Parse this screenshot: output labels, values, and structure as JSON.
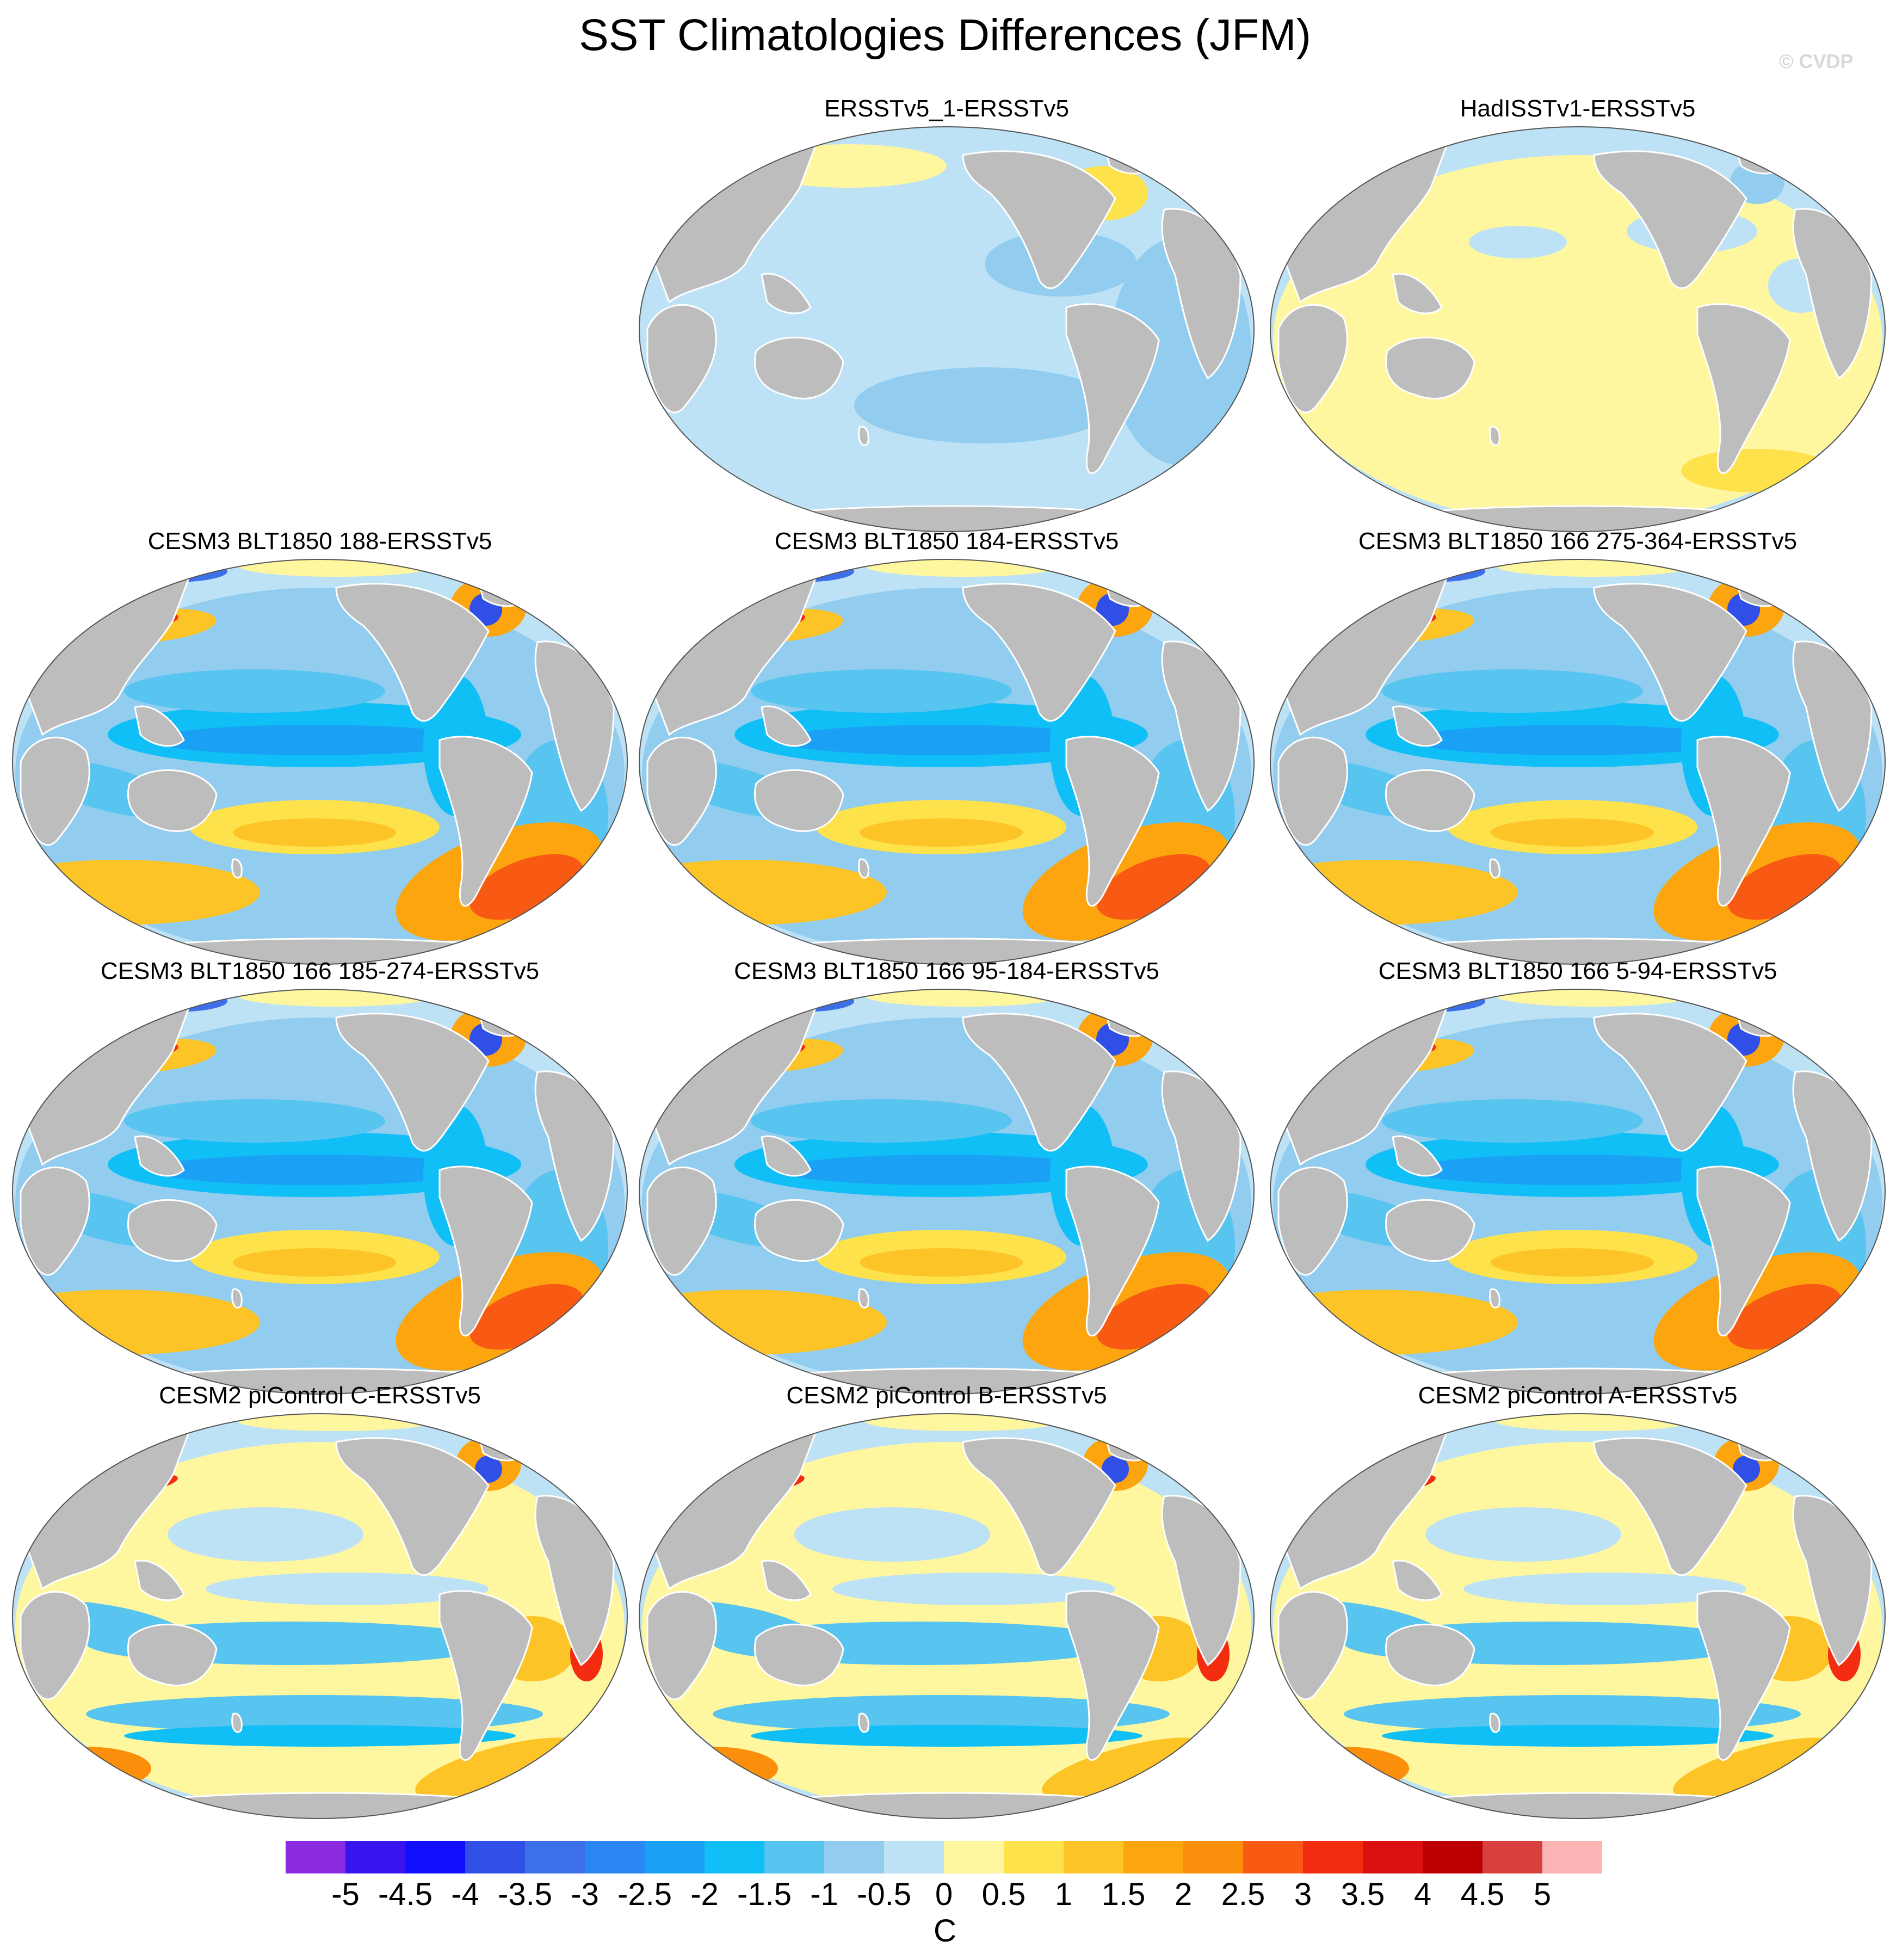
{
  "figure": {
    "title": "SST Climatologies Differences (JFM)",
    "watermark": "© CVDP"
  },
  "colors": {
    "land": "#bdbdbd",
    "coast": "#ffffff",
    "outline": "#555555"
  },
  "colorbar": {
    "units": "C",
    "tick_labels": [
      "-5",
      "-4.5",
      "-4",
      "-3.5",
      "-3",
      "-2.5",
      "-2",
      "-1.5",
      "-1",
      "-0.5",
      "0",
      "0.5",
      "1",
      "1.5",
      "2",
      "2.5",
      "3",
      "3.5",
      "4",
      "4.5",
      "5"
    ],
    "colors": [
      "#8a2be2",
      "#3a14ee",
      "#1010ff",
      "#2f4fe6",
      "#3c6fe8",
      "#2a86f0",
      "#1aa0f5",
      "#10bff5",
      "#58c4f0",
      "#92cdef",
      "#bde2f6",
      "#fff7a0",
      "#fde24c",
      "#fdc428",
      "#fca50e",
      "#fb8e0a",
      "#f85a14",
      "#f42c10",
      "#dc1010",
      "#bc0000",
      "#d84040",
      "#fcb4b4"
    ]
  },
  "panels": [
    {
      "title": "ERSSTv5_1-ERSSTv5",
      "pattern": "cool_uniform"
    },
    {
      "title": "HadISSTv1-ERSSTv5",
      "pattern": "warm_uniform"
    },
    {
      "title": "CESM3 BLT1850 188-ERSSTv5",
      "pattern": "cesm3"
    },
    {
      "title": "CESM3 BLT1850 184-ERSSTv5",
      "pattern": "cesm3"
    },
    {
      "title": "CESM3 BLT1850 166 275-364-ERSSTv5",
      "pattern": "cesm3"
    },
    {
      "title": "CESM3 BLT1850 166 185-274-ERSSTv5",
      "pattern": "cesm3"
    },
    {
      "title": "CESM3 BLT1850 166 95-184-ERSSTv5",
      "pattern": "cesm3"
    },
    {
      "title": "CESM3 BLT1850 166 5-94-ERSSTv5",
      "pattern": "cesm3"
    },
    {
      "title": "CESM2 piControl C-ERSSTv5",
      "pattern": "cesm2"
    },
    {
      "title": "CESM2 piControl B-ERSSTv5",
      "pattern": "cesm2"
    },
    {
      "title": "CESM2 piControl A-ERSSTv5",
      "pattern": "cesm2"
    }
  ]
}
